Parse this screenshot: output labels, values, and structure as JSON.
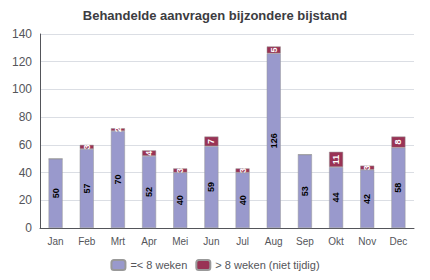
{
  "chart_data": {
    "type": "bar",
    "title": "Behandelde aanvragen bijzondere bijstand",
    "categories": [
      "Jan",
      "Feb",
      "Mrt",
      "Apr",
      "Mei",
      "Jun",
      "Jul",
      "Aug",
      "Sep",
      "Okt",
      "Nov",
      "Dec"
    ],
    "series": [
      {
        "name": "=< 8 weken",
        "color": "#9999CC",
        "values": [
          50,
          57,
          70,
          52,
          40,
          59,
          40,
          126,
          53,
          44,
          42,
          58
        ]
      },
      {
        "name": "> 8 weken (niet tijdig)",
        "color": "#993355",
        "values": [
          0,
          3,
          2,
          4,
          3,
          7,
          3,
          5,
          0,
          11,
          3,
          8
        ]
      }
    ],
    "stacked": true,
    "ylim": [
      0,
      140
    ],
    "yticks": [
      0,
      20,
      40,
      60,
      80,
      100,
      120,
      140
    ],
    "grid": true,
    "legend": "bottom",
    "data_labels": true
  }
}
